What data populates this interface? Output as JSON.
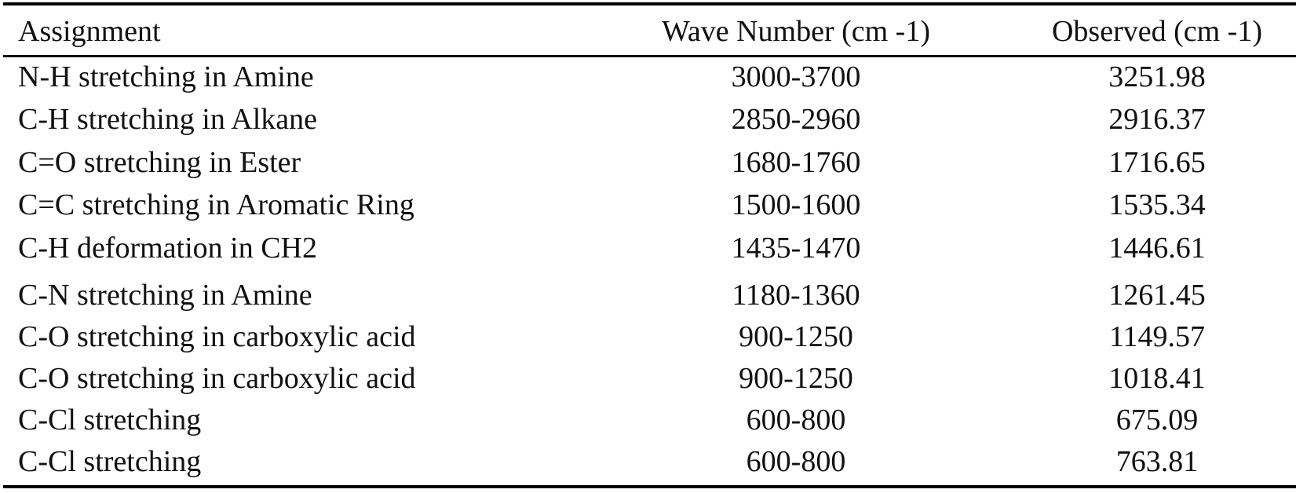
{
  "table": {
    "header": [
      "Assignment",
      "Wave Number (cm -1)",
      "Observed (cm -1)"
    ],
    "rows": [
      [
        "N-H stretching in Amine",
        "3000-3700",
        "3251.98"
      ],
      [
        "C-H stretching in Alkane",
        "2850-2960",
        "2916.37"
      ],
      [
        "C=O stretching in Ester",
        "1680-1760",
        "1716.65"
      ],
      [
        "C=C stretching in Aromatic Ring",
        "1500-1600",
        "1535.34"
      ],
      [
        "C-H deformation in CH2",
        "1435-1470",
        "1446.61"
      ],
      [
        "C-N stretching in Amine",
        "1180-1360",
        "1261.45"
      ],
      [
        "C-O stretching in carboxylic acid",
        "900-1250",
        "1149.57"
      ],
      [
        "C-O stretching in carboxylic acid",
        "900-1250",
        "1018.41"
      ],
      [
        "C-Cl stretching",
        "600-800",
        "675.09"
      ],
      [
        "C-Cl stretching",
        "600-800",
        "763.81"
      ]
    ]
  }
}
